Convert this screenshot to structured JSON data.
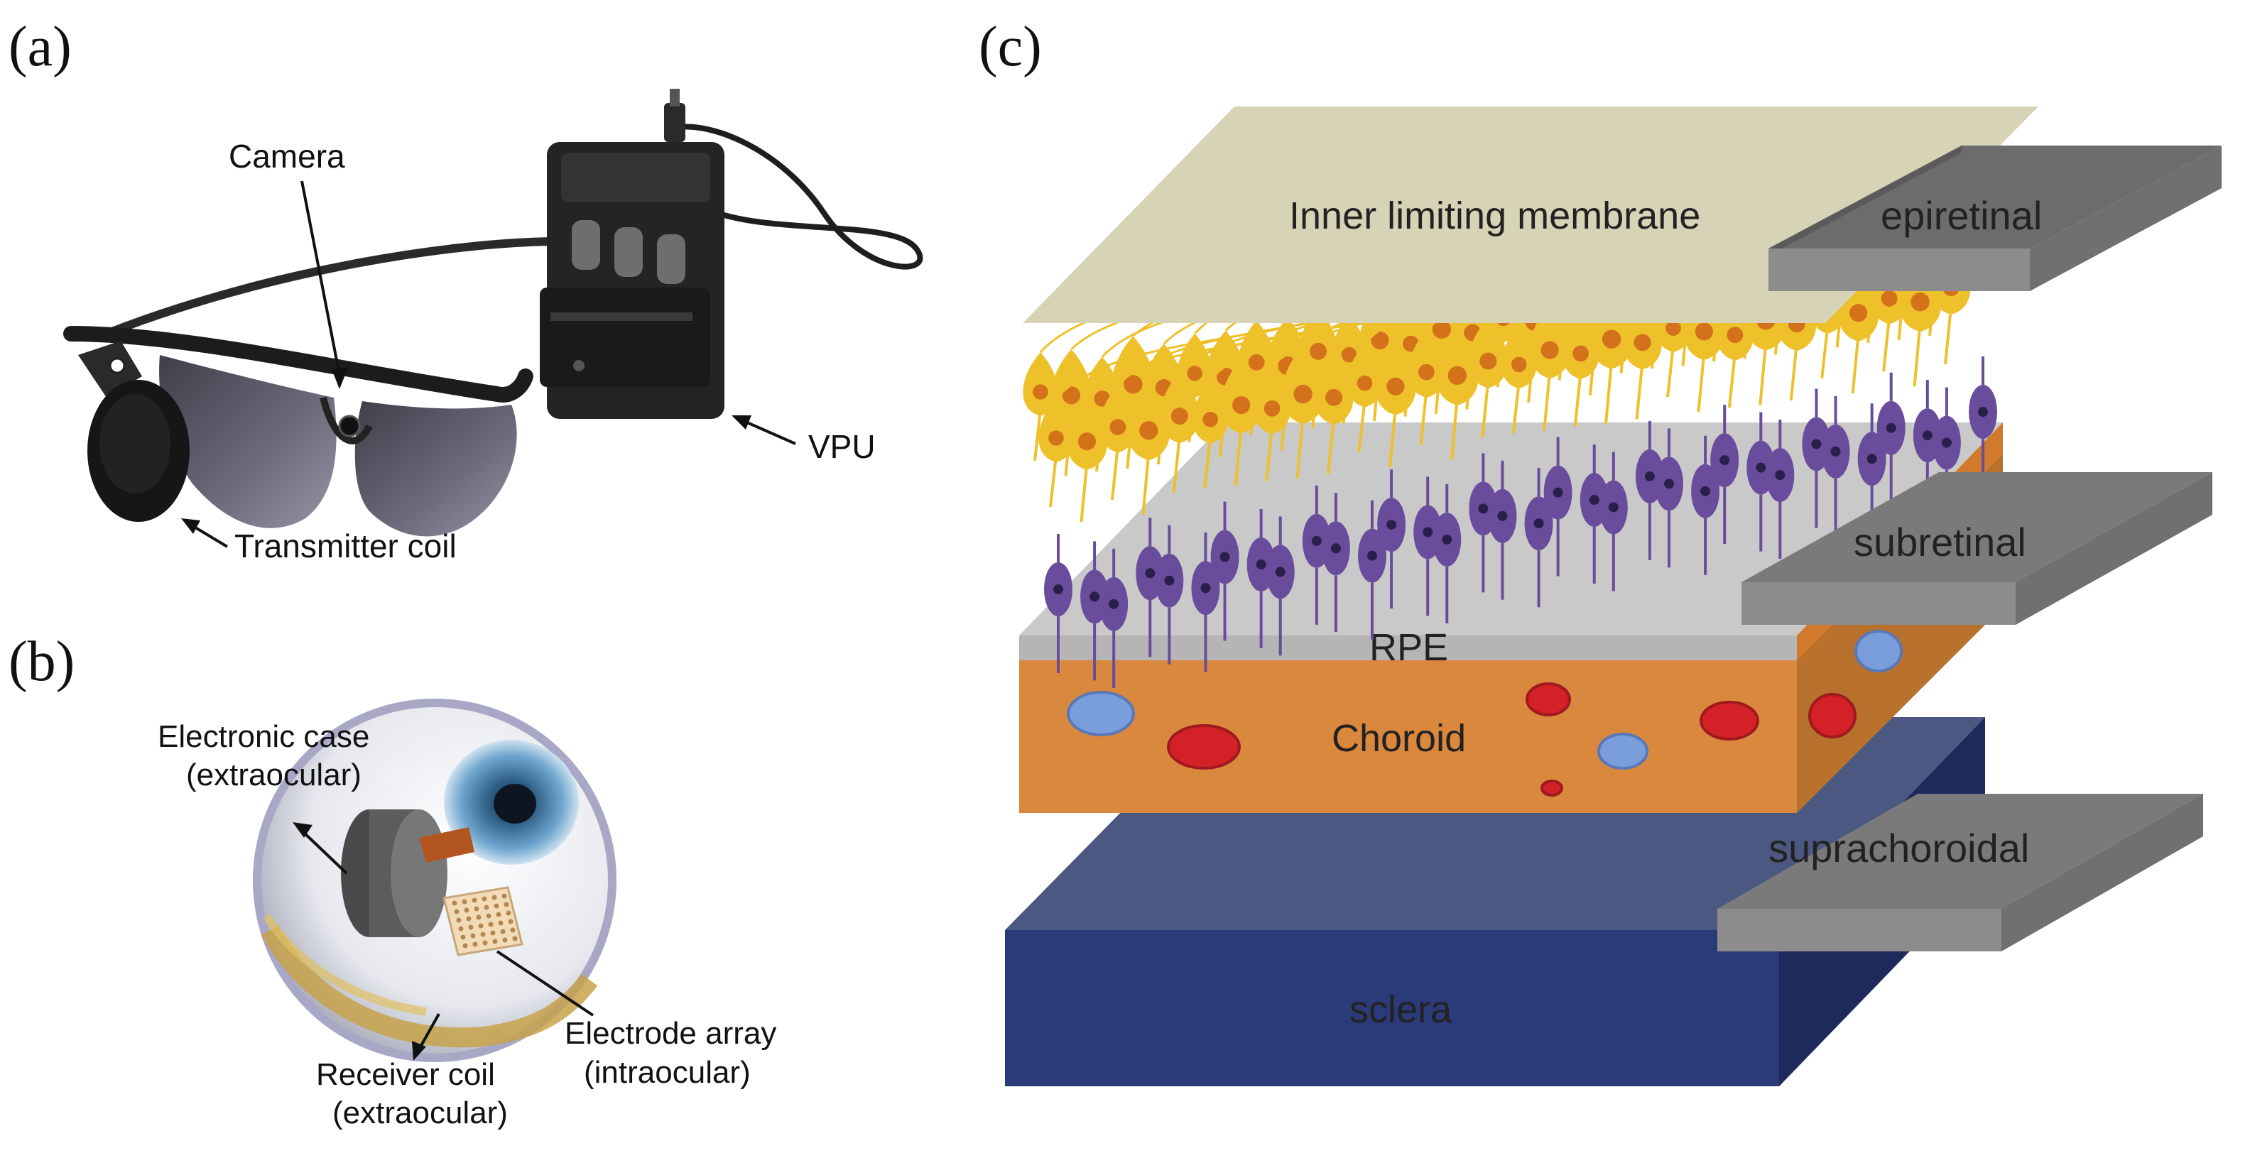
{
  "panels": {
    "a": {
      "label": "(a)",
      "callouts": {
        "camera": "Camera",
        "vpu": "VPU",
        "transmitter": "Transmitter coil"
      }
    },
    "b": {
      "label": "(b)",
      "callouts": {
        "case_1": "Electronic case",
        "case_2": "(extraocular)",
        "array_1": "Electrode array",
        "array_2": "(intraocular)",
        "receiver_1": "Receiver coil",
        "receiver_2": "(extraocular)"
      }
    },
    "c": {
      "label": "(c)",
      "layers": {
        "ilm": "Inner limiting membrane",
        "rpe": "RPE",
        "choroid": "Choroid",
        "sclera": "sclera"
      },
      "implant_sites": {
        "epiretinal": "epiretinal",
        "subretinal": "subretinal",
        "suprachoroidal": "suprachoroidal"
      }
    }
  },
  "colors": {
    "ilm": "#d6d3b6",
    "ganglion": "#eec12a",
    "ganglion_nucleus": "#d4721c",
    "photoreceptor": "#6a4c9c",
    "photoreceptor_nucleus": "#2a1f4a",
    "rpe_top": "#c7c7c7",
    "rpe_front": "#b3b3b3",
    "choroid_front": "#d9883e",
    "choroid_side": "#b8702d",
    "vessel_red": "#d42027",
    "vessel_blue": "#7a9ddc",
    "sclera_top": "#4a5882",
    "sclera_front": "#2b3a78",
    "sclera_side": "#1e2a5c",
    "plate": "#8c8c8c"
  }
}
